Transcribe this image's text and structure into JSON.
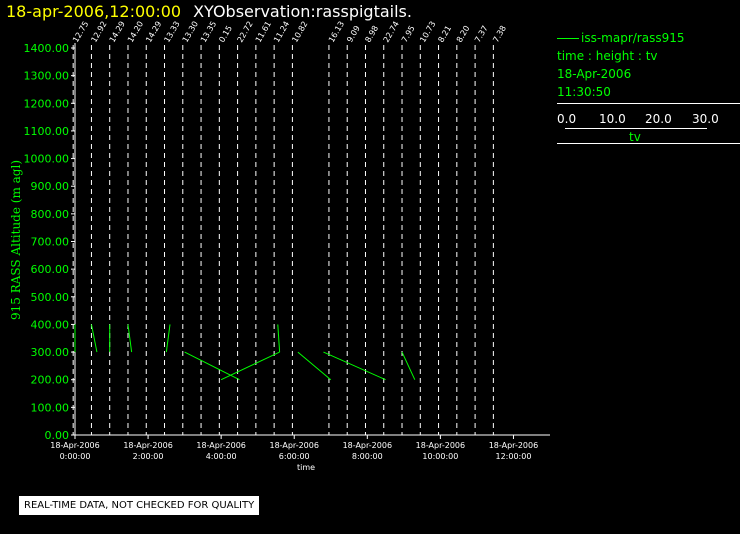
{
  "header": {
    "datetime": "18-apr-2006,12:00:00",
    "title": "XYObservation:rasspigtails."
  },
  "legend": {
    "series": "iss-mapr/rass915",
    "variables": "time : height : tv",
    "date": "18-Apr-2006",
    "time": "11:30:50",
    "scale_ticks": [
      "0.0",
      "10.0",
      "20.0",
      "30.0"
    ],
    "scale_name": "tv"
  },
  "footer": "REAL-TIME DATA, NOT CHECKED FOR QUALITY",
  "chart_data": {
    "type": "line",
    "ylabel": "915 RASS Altitude (m agl)",
    "xlabel": "time",
    "ylim": [
      0,
      1400
    ],
    "yticks": [
      "0.00",
      "100.00",
      "200.00",
      "300.00",
      "400.00",
      "500.00",
      "600.00",
      "700.00",
      "800.00",
      "900.00",
      "1000.00",
      "1100.00",
      "1200.00",
      "1300.00",
      "1400.00"
    ],
    "xlim": [
      "18-Apr-2006 00:00",
      "18-Apr-2006 13:00"
    ],
    "xticks": [
      {
        "date": "18-Apr-2006",
        "time": "0:00:00",
        "hour": 0
      },
      {
        "date": "18-Apr-2006",
        "time": "2:00:00",
        "hour": 2
      },
      {
        "date": "18-Apr-2006",
        "time": "4:00:00",
        "hour": 4
      },
      {
        "date": "18-Apr-2006",
        "time": "6:00:00",
        "hour": 6
      },
      {
        "date": "18-Apr-2006",
        "time": "8:00:00",
        "hour": 8
      },
      {
        "date": "18-Apr-2006",
        "time": "10:00:00",
        "hour": 10
      },
      {
        "date": "18-Apr-2006",
        "time": "12:00:00",
        "hour": 12
      }
    ],
    "profiles": [
      {
        "hour": -0.05,
        "label": "12.75",
        "points": [
          [
            0.0,
            400
          ],
          [
            0.0,
            300
          ]
        ]
      },
      {
        "hour": 0.45,
        "label": "12.92",
        "points": [
          [
            0.45,
            400
          ],
          [
            0.6,
            300
          ]
        ]
      },
      {
        "hour": 0.95,
        "label": "14.29",
        "points": [
          [
            0.95,
            400
          ],
          [
            0.95,
            300
          ]
        ]
      },
      {
        "hour": 1.45,
        "label": "14.20",
        "points": [
          [
            1.45,
            400
          ],
          [
            1.55,
            300
          ]
        ]
      },
      {
        "hour": 1.95,
        "label": "14.29",
        "points": []
      },
      {
        "hour": 2.45,
        "label": "13.33",
        "points": [
          [
            2.6,
            400
          ],
          [
            2.5,
            300
          ]
        ]
      },
      {
        "hour": 2.95,
        "label": "13.30",
        "points": [
          [
            3.0,
            300
          ],
          [
            4.5,
            200
          ]
        ]
      },
      {
        "hour": 3.45,
        "label": "13.35",
        "points": []
      },
      {
        "hour": 3.95,
        "label": "0.15",
        "points": [
          [
            4.0,
            200
          ],
          [
            5.6,
            300
          ]
        ]
      },
      {
        "hour": 4.45,
        "label": "22.72",
        "points": []
      },
      {
        "hour": 4.95,
        "label": "11.61",
        "points": []
      },
      {
        "hour": 5.45,
        "label": "11.24",
        "points": [
          [
            5.55,
            400
          ],
          [
            5.6,
            300
          ]
        ]
      },
      {
        "hour": 5.95,
        "label": "10.82",
        "points": [
          [
            6.1,
            300
          ],
          [
            7.0,
            200
          ]
        ]
      },
      {
        "hour": 6.95,
        "label": "16.13",
        "points": [
          [
            6.8,
            300
          ],
          [
            8.5,
            200
          ]
        ]
      },
      {
        "hour": 7.45,
        "label": "9.09",
        "points": []
      },
      {
        "hour": 7.95,
        "label": "8.98",
        "points": []
      },
      {
        "hour": 8.45,
        "label": "22.74",
        "points": []
      },
      {
        "hour": 8.95,
        "label": "7.95",
        "points": [
          [
            8.95,
            300
          ],
          [
            9.3,
            200
          ]
        ]
      },
      {
        "hour": 9.45,
        "label": "10.73",
        "points": []
      },
      {
        "hour": 9.95,
        "label": "8.21",
        "points": []
      },
      {
        "hour": 10.45,
        "label": "8.20",
        "points": []
      },
      {
        "hour": 10.95,
        "label": "7.37",
        "points": []
      },
      {
        "hour": 11.45,
        "label": "7.38",
        "points": []
      }
    ],
    "colors": {
      "profile": "#00ff00",
      "grid": "#ffffff",
      "background": "#000000"
    }
  }
}
